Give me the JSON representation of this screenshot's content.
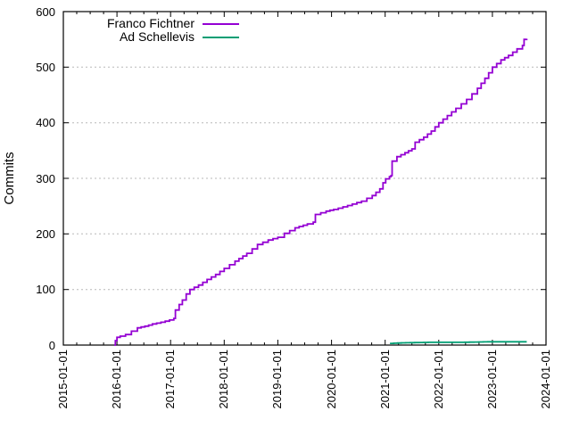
{
  "chart_data": {
    "type": "line",
    "title": "",
    "xlabel": "",
    "ylabel": "Commits",
    "ylim": [
      0,
      600
    ],
    "y_ticks": [
      "0",
      "100",
      "200",
      "300",
      "400",
      "500",
      "600"
    ],
    "x_ticks": [
      "2015-01-01",
      "2016-01-01",
      "2017-01-01",
      "2018-01-01",
      "2019-01-01",
      "2020-01-01",
      "2021-01-01",
      "2022-01-01",
      "2023-01-01",
      "2024-01-01"
    ],
    "x_unit": "decimal years since 2015-01-01",
    "grid": "horizontal dotted lines at each 100",
    "grid_color": "#b8b8b8",
    "border_color": "#000000",
    "background_color": "#ffffff",
    "legend_position": "top-center, no box, right-aligned labels with line samples",
    "series": [
      {
        "name": "Franco Fichtner",
        "color": "#9400D3",
        "style": "cumulative step line",
        "points": [
          [
            0.95,
            0
          ],
          [
            0.97,
            8
          ],
          [
            1.0,
            14
          ],
          [
            1.06,
            16
          ],
          [
            1.16,
            19
          ],
          [
            1.27,
            25
          ],
          [
            1.38,
            31
          ],
          [
            1.52,
            34
          ],
          [
            1.66,
            38
          ],
          [
            1.82,
            41
          ],
          [
            1.98,
            45
          ],
          [
            2.06,
            48
          ],
          [
            2.09,
            63
          ],
          [
            2.16,
            73
          ],
          [
            2.22,
            81
          ],
          [
            2.29,
            92
          ],
          [
            2.36,
            100
          ],
          [
            2.52,
            108
          ],
          [
            2.68,
            118
          ],
          [
            2.84,
            127
          ],
          [
            3.0,
            138
          ],
          [
            3.2,
            151
          ],
          [
            3.42,
            165
          ],
          [
            3.62,
            181
          ],
          [
            3.82,
            189
          ],
          [
            4.0,
            194
          ],
          [
            4.12,
            201
          ],
          [
            4.32,
            211
          ],
          [
            4.55,
            218
          ],
          [
            4.66,
            221
          ],
          [
            4.7,
            235
          ],
          [
            4.9,
            241
          ],
          [
            5.04,
            244
          ],
          [
            5.3,
            251
          ],
          [
            5.56,
            259
          ],
          [
            5.76,
            269
          ],
          [
            5.9,
            281
          ],
          [
            5.96,
            292
          ],
          [
            6.01,
            299
          ],
          [
            6.08,
            303
          ],
          [
            6.11,
            305
          ],
          [
            6.13,
            331
          ],
          [
            6.22,
            339
          ],
          [
            6.37,
            346
          ],
          [
            6.5,
            353
          ],
          [
            6.56,
            365
          ],
          [
            6.72,
            374
          ],
          [
            6.86,
            385
          ],
          [
            7.0,
            400
          ],
          [
            7.16,
            413
          ],
          [
            7.32,
            426
          ],
          [
            7.52,
            442
          ],
          [
            7.72,
            462
          ],
          [
            7.86,
            480
          ],
          [
            8.0,
            500
          ],
          [
            8.16,
            513
          ],
          [
            8.3,
            521
          ],
          [
            8.46,
            533
          ],
          [
            8.56,
            539
          ],
          [
            8.59,
            550
          ],
          [
            8.64,
            551
          ]
        ]
      },
      {
        "name": "Ad Schellevis",
        "color": "#009E73",
        "style": "flat near-zero line",
        "points": [
          [
            6.09,
            3
          ],
          [
            6.3,
            4
          ],
          [
            6.8,
            5
          ],
          [
            7.4,
            5
          ],
          [
            8.0,
            6
          ],
          [
            8.64,
            6
          ]
        ]
      }
    ]
  }
}
